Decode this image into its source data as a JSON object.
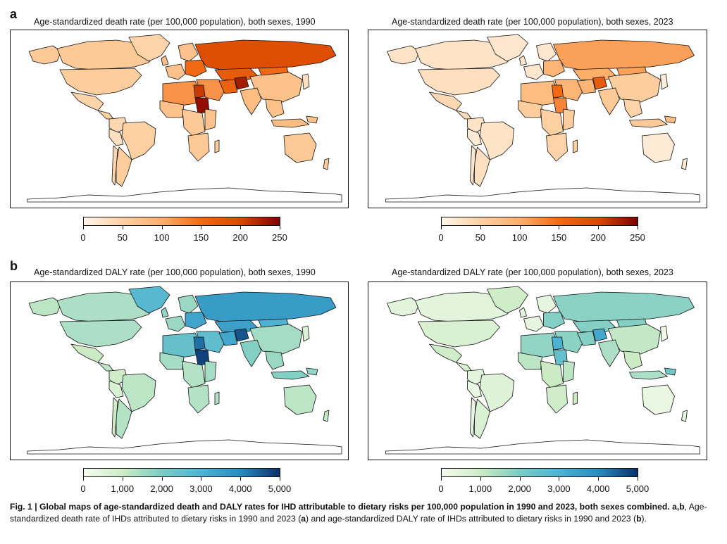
{
  "figure": {
    "panel_a": {
      "letter": "a",
      "maps": [
        {
          "title": "Age-standardized death rate (per 100,000 population), both sexes, 1990",
          "palette": "orange",
          "variant": 1990
        },
        {
          "title": "Age-standardized death rate (per 100,000 population), both sexes, 2023",
          "palette": "orange",
          "variant": 2023
        }
      ],
      "colorbar": {
        "ticks": [
          "0",
          "50",
          "100",
          "150",
          "200",
          "250"
        ],
        "colors": [
          "#fff5eb",
          "#fdd0a2",
          "#fdae6b",
          "#f16913",
          "#d94801",
          "#7f0000"
        ]
      }
    },
    "panel_b": {
      "letter": "b",
      "maps": [
        {
          "title": "Age-standardized DALY rate (per 100,000 population), both sexes, 1990",
          "palette": "blue",
          "variant": 1990
        },
        {
          "title": "Age-standardized DALY rate (per 100,000 population), both sexes, 2023",
          "palette": "blue",
          "variant": 2023
        }
      ],
      "colorbar": {
        "ticks": [
          "0",
          "1,000",
          "2,000",
          "3,000",
          "4,000",
          "5,000"
        ],
        "colors": [
          "#f7fcf0",
          "#ccebc5",
          "#7bccc4",
          "#4eb3d3",
          "#2b8cbe",
          "#08306b"
        ]
      }
    },
    "caption": {
      "label": "Fig. 1 | Global maps of age-standardized death and DALY rates for IHD attributable to dietary risks per 100,000 population in 1990 and 2023, both sexes combined.",
      "body_start": "a,b",
      "body_text": ", Age-standardized death rate of IHDs attributed to dietary risks in 1990 and 2023 (",
      "ref_a": "a",
      "body_mid": ") and age-standardized DALY rate of IHDs attributed to dietary risks in 1990 and 2023 (",
      "ref_b": "b",
      "body_end": ")."
    }
  }
}
